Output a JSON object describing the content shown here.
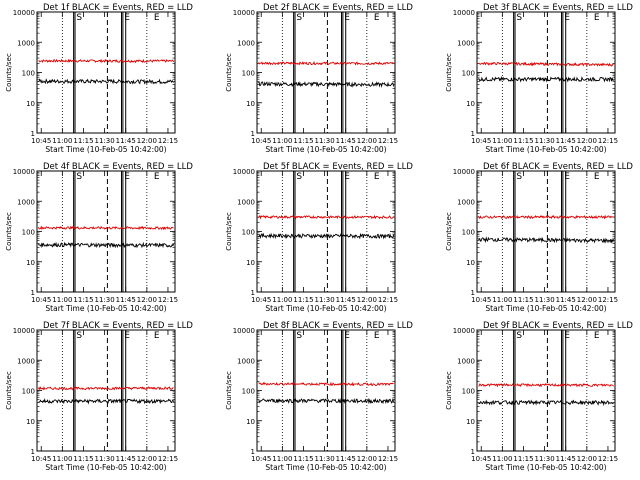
{
  "figure": {
    "xlabel": "Start Time (10-Feb-05 10:42:00)",
    "ylabel": "Counts/sec",
    "x_tick_labels": [
      "10:45",
      "11:00",
      "11:15",
      "11:30",
      "11:45",
      "12:00",
      "12:15"
    ],
    "y_tick_labels": [
      "1",
      "10",
      "100",
      "1000",
      "10000"
    ],
    "series_colors": {
      "events": "#000000",
      "lld": "#e00000"
    },
    "marker_letters": [
      "S",
      "E",
      "E"
    ]
  },
  "chart_data": [
    {
      "type": "line",
      "title": "Det 1f BLACK = Events, RED = LLD",
      "xlabel": "Start Time (10-Feb-05 10:42:00)",
      "ylabel": "Counts/sec",
      "xlim": [
        "10:42",
        "12:20"
      ],
      "ylim": [
        1,
        10000
      ],
      "yscale": "log",
      "grid": "dotted vertical at 11:00, 12:00",
      "events": {
        "baseline": 60,
        "end": 50,
        "spike_to": 10000
      },
      "lld": {
        "baseline": 260,
        "end": 240,
        "spike_to": 10000
      },
      "solid_markers": [
        "11:08",
        "11:09",
        "11:42",
        "11:43",
        "11:45"
      ],
      "dashed_markers": [
        "11:32"
      ],
      "dotted_markers": [
        "11:00",
        "12:00"
      ],
      "labels": [
        "S",
        "E",
        "E"
      ]
    },
    {
      "type": "line",
      "title": "Det 2f BLACK = Events, RED = LLD",
      "xlabel": "Start Time (10-Feb-05 10:42:00)",
      "ylabel": "Counts/sec",
      "xlim": [
        "10:42",
        "12:20"
      ],
      "ylim": [
        1,
        10000
      ],
      "yscale": "log",
      "grid": "dotted vertical at 11:00, 12:00",
      "events": {
        "baseline": 55,
        "end": 40,
        "spike_to": 10000
      },
      "lld": {
        "baseline": 220,
        "end": 200,
        "spike_to": 10000
      },
      "solid_markers": [
        "11:08",
        "11:09",
        "11:42",
        "11:43",
        "11:45"
      ],
      "dashed_markers": [
        "11:32"
      ],
      "dotted_markers": [
        "11:00",
        "12:00"
      ],
      "labels": [
        "S",
        "E",
        "E"
      ]
    },
    {
      "type": "line",
      "title": "Det 3f BLACK = Events, RED = LLD",
      "xlabel": "Start Time (10-Feb-05 10:42:00)",
      "ylabel": "Counts/sec",
      "xlim": [
        "10:42",
        "12:20"
      ],
      "ylim": [
        1,
        10000
      ],
      "yscale": "log",
      "grid": "dotted vertical at 11:00, 12:00",
      "events": {
        "baseline": 60,
        "end": 60,
        "spike_to": 150
      },
      "lld": {
        "baseline": 300,
        "end": 180,
        "spike_to": 500
      },
      "solid_markers": [
        "11:08",
        "11:09",
        "11:42",
        "11:43",
        "11:45"
      ],
      "dashed_markers": [
        "11:32"
      ],
      "dotted_markers": [
        "11:00",
        "12:00"
      ],
      "labels": [
        "S",
        "E",
        "E"
      ]
    },
    {
      "type": "line",
      "title": "Det 4f BLACK = Events, RED = LLD",
      "xlabel": "Start Time (10-Feb-05 10:42:00)",
      "ylabel": "Counts/sec",
      "xlim": [
        "10:42",
        "12:20"
      ],
      "ylim": [
        1,
        10000
      ],
      "yscale": "log",
      "grid": "dotted vertical at 11:00, 12:00",
      "events": {
        "baseline": 45,
        "end": 35,
        "spike_to": 10000
      },
      "lld": {
        "baseline": 150,
        "end": 130,
        "spike_to": 10000
      },
      "solid_markers": [
        "11:08",
        "11:09",
        "11:42",
        "11:43",
        "11:45"
      ],
      "dashed_markers": [
        "11:32"
      ],
      "dotted_markers": [
        "11:00",
        "12:00"
      ],
      "labels": [
        "S",
        "E",
        "E"
      ]
    },
    {
      "type": "line",
      "title": "Det 5f BLACK = Events, RED = LLD",
      "xlabel": "Start Time (10-Feb-05 10:42:00)",
      "ylabel": "Counts/sec",
      "xlim": [
        "10:42",
        "12:20"
      ],
      "ylim": [
        1,
        10000
      ],
      "yscale": "log",
      "grid": "dotted vertical at 11:00, 12:00",
      "events": {
        "baseline": 90,
        "end": 70,
        "spike_to": 10000
      },
      "lld": {
        "baseline": 320,
        "end": 300,
        "spike_to": 10000
      },
      "solid_markers": [
        "11:08",
        "11:09",
        "11:42",
        "11:43",
        "11:45"
      ],
      "dashed_markers": [
        "11:32"
      ],
      "dotted_markers": [
        "11:00",
        "12:00"
      ],
      "labels": [
        "S",
        "E",
        "E"
      ]
    },
    {
      "type": "line",
      "title": "Det 6f BLACK = Events, RED = LLD",
      "xlabel": "Start Time (10-Feb-05 10:42:00)",
      "ylabel": "Counts/sec",
      "xlim": [
        "10:42",
        "12:20"
      ],
      "ylim": [
        1,
        10000
      ],
      "yscale": "log",
      "grid": "dotted vertical at 11:00, 12:00",
      "events": {
        "baseline": 80,
        "end": 50,
        "spike_to": 10000
      },
      "lld": {
        "baseline": 300,
        "end": 300,
        "spike_to": 10000
      },
      "solid_markers": [
        "11:08",
        "11:09",
        "11:42",
        "11:43",
        "11:45"
      ],
      "dashed_markers": [
        "11:32"
      ],
      "dotted_markers": [
        "11:00",
        "12:00"
      ],
      "labels": [
        "S",
        "E",
        "E"
      ]
    },
    {
      "type": "line",
      "title": "Det 7f BLACK = Events, RED = LLD",
      "xlabel": "Start Time (10-Feb-05 10:42:00)",
      "ylabel": "Counts/sec",
      "xlim": [
        "10:42",
        "12:20"
      ],
      "ylim": [
        1,
        10000
      ],
      "yscale": "log",
      "grid": "dotted vertical at 11:00, 12:00",
      "events": {
        "baseline": 40,
        "end": 45,
        "spike_to": 10000
      },
      "lld": {
        "baseline": 100,
        "end": 120,
        "spike_to": 10000
      },
      "solid_markers": [
        "11:08",
        "11:09",
        "11:42",
        "11:43",
        "11:45"
      ],
      "dashed_markers": [
        "11:32"
      ],
      "dotted_markers": [
        "11:00",
        "12:00"
      ],
      "labels": [
        "S",
        "E",
        "E"
      ]
    },
    {
      "type": "line",
      "title": "Det 8f BLACK = Events, RED = LLD",
      "xlabel": "Start Time (10-Feb-05 10:42:00)",
      "ylabel": "Counts/sec",
      "xlim": [
        "10:42",
        "12:20"
      ],
      "ylim": [
        1,
        10000
      ],
      "yscale": "log",
      "grid": "dotted vertical at 11:00, 12:00",
      "events": {
        "baseline": 55,
        "end": 45,
        "spike_to": 10000
      },
      "lld": {
        "baseline": 200,
        "end": 160,
        "spike_to": 10000
      },
      "solid_markers": [
        "11:08",
        "11:09",
        "11:42",
        "11:43",
        "11:45"
      ],
      "dashed_markers": [
        "11:32"
      ],
      "dotted_markers": [
        "11:00",
        "12:00"
      ],
      "labels": [
        "S",
        "E",
        "E"
      ]
    },
    {
      "type": "line",
      "title": "Det 9f BLACK = Events, RED = LLD",
      "xlabel": "Start Time (10-Feb-05 10:42:00)",
      "ylabel": "Counts/sec",
      "xlim": [
        "10:42",
        "12:20"
      ],
      "ylim": [
        1,
        10000
      ],
      "yscale": "log",
      "grid": "dotted vertical at 11:00, 12:00",
      "events": {
        "baseline": 45,
        "end": 40,
        "spike_to": 10000
      },
      "lld": {
        "baseline": 170,
        "end": 150,
        "spike_to": 10000
      },
      "solid_markers": [
        "11:08",
        "11:09",
        "11:42",
        "11:43",
        "11:45"
      ],
      "dashed_markers": [
        "11:32"
      ],
      "dotted_markers": [
        "11:00",
        "12:00"
      ],
      "labels": [
        "S",
        "E",
        "E"
      ]
    }
  ]
}
